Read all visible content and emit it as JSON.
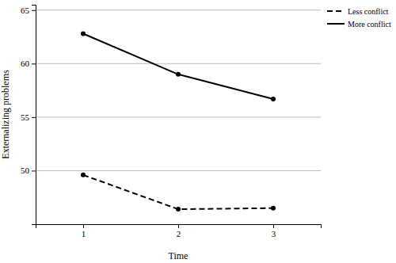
{
  "chart_data": {
    "type": "line",
    "x_label": "Time",
    "y_label": "Externalizing problems",
    "x": [
      1,
      2,
      3
    ],
    "xlim": [
      0.5,
      3.5
    ],
    "xticks": [
      1,
      2,
      3
    ],
    "ylim": [
      45,
      65.5
    ],
    "yticks": [
      50,
      55,
      60,
      65
    ],
    "grid": true,
    "legend": "upper right",
    "series": [
      {
        "name": "Less conflict",
        "color": "#000000",
        "line_style": "dashed",
        "marker": "circle",
        "values": [
          49.6,
          46.4,
          46.5
        ]
      },
      {
        "name": "More conflict",
        "color": "#000000",
        "line_style": "solid",
        "marker": "circle",
        "values": [
          62.8,
          59.0,
          56.7
        ]
      }
    ]
  }
}
